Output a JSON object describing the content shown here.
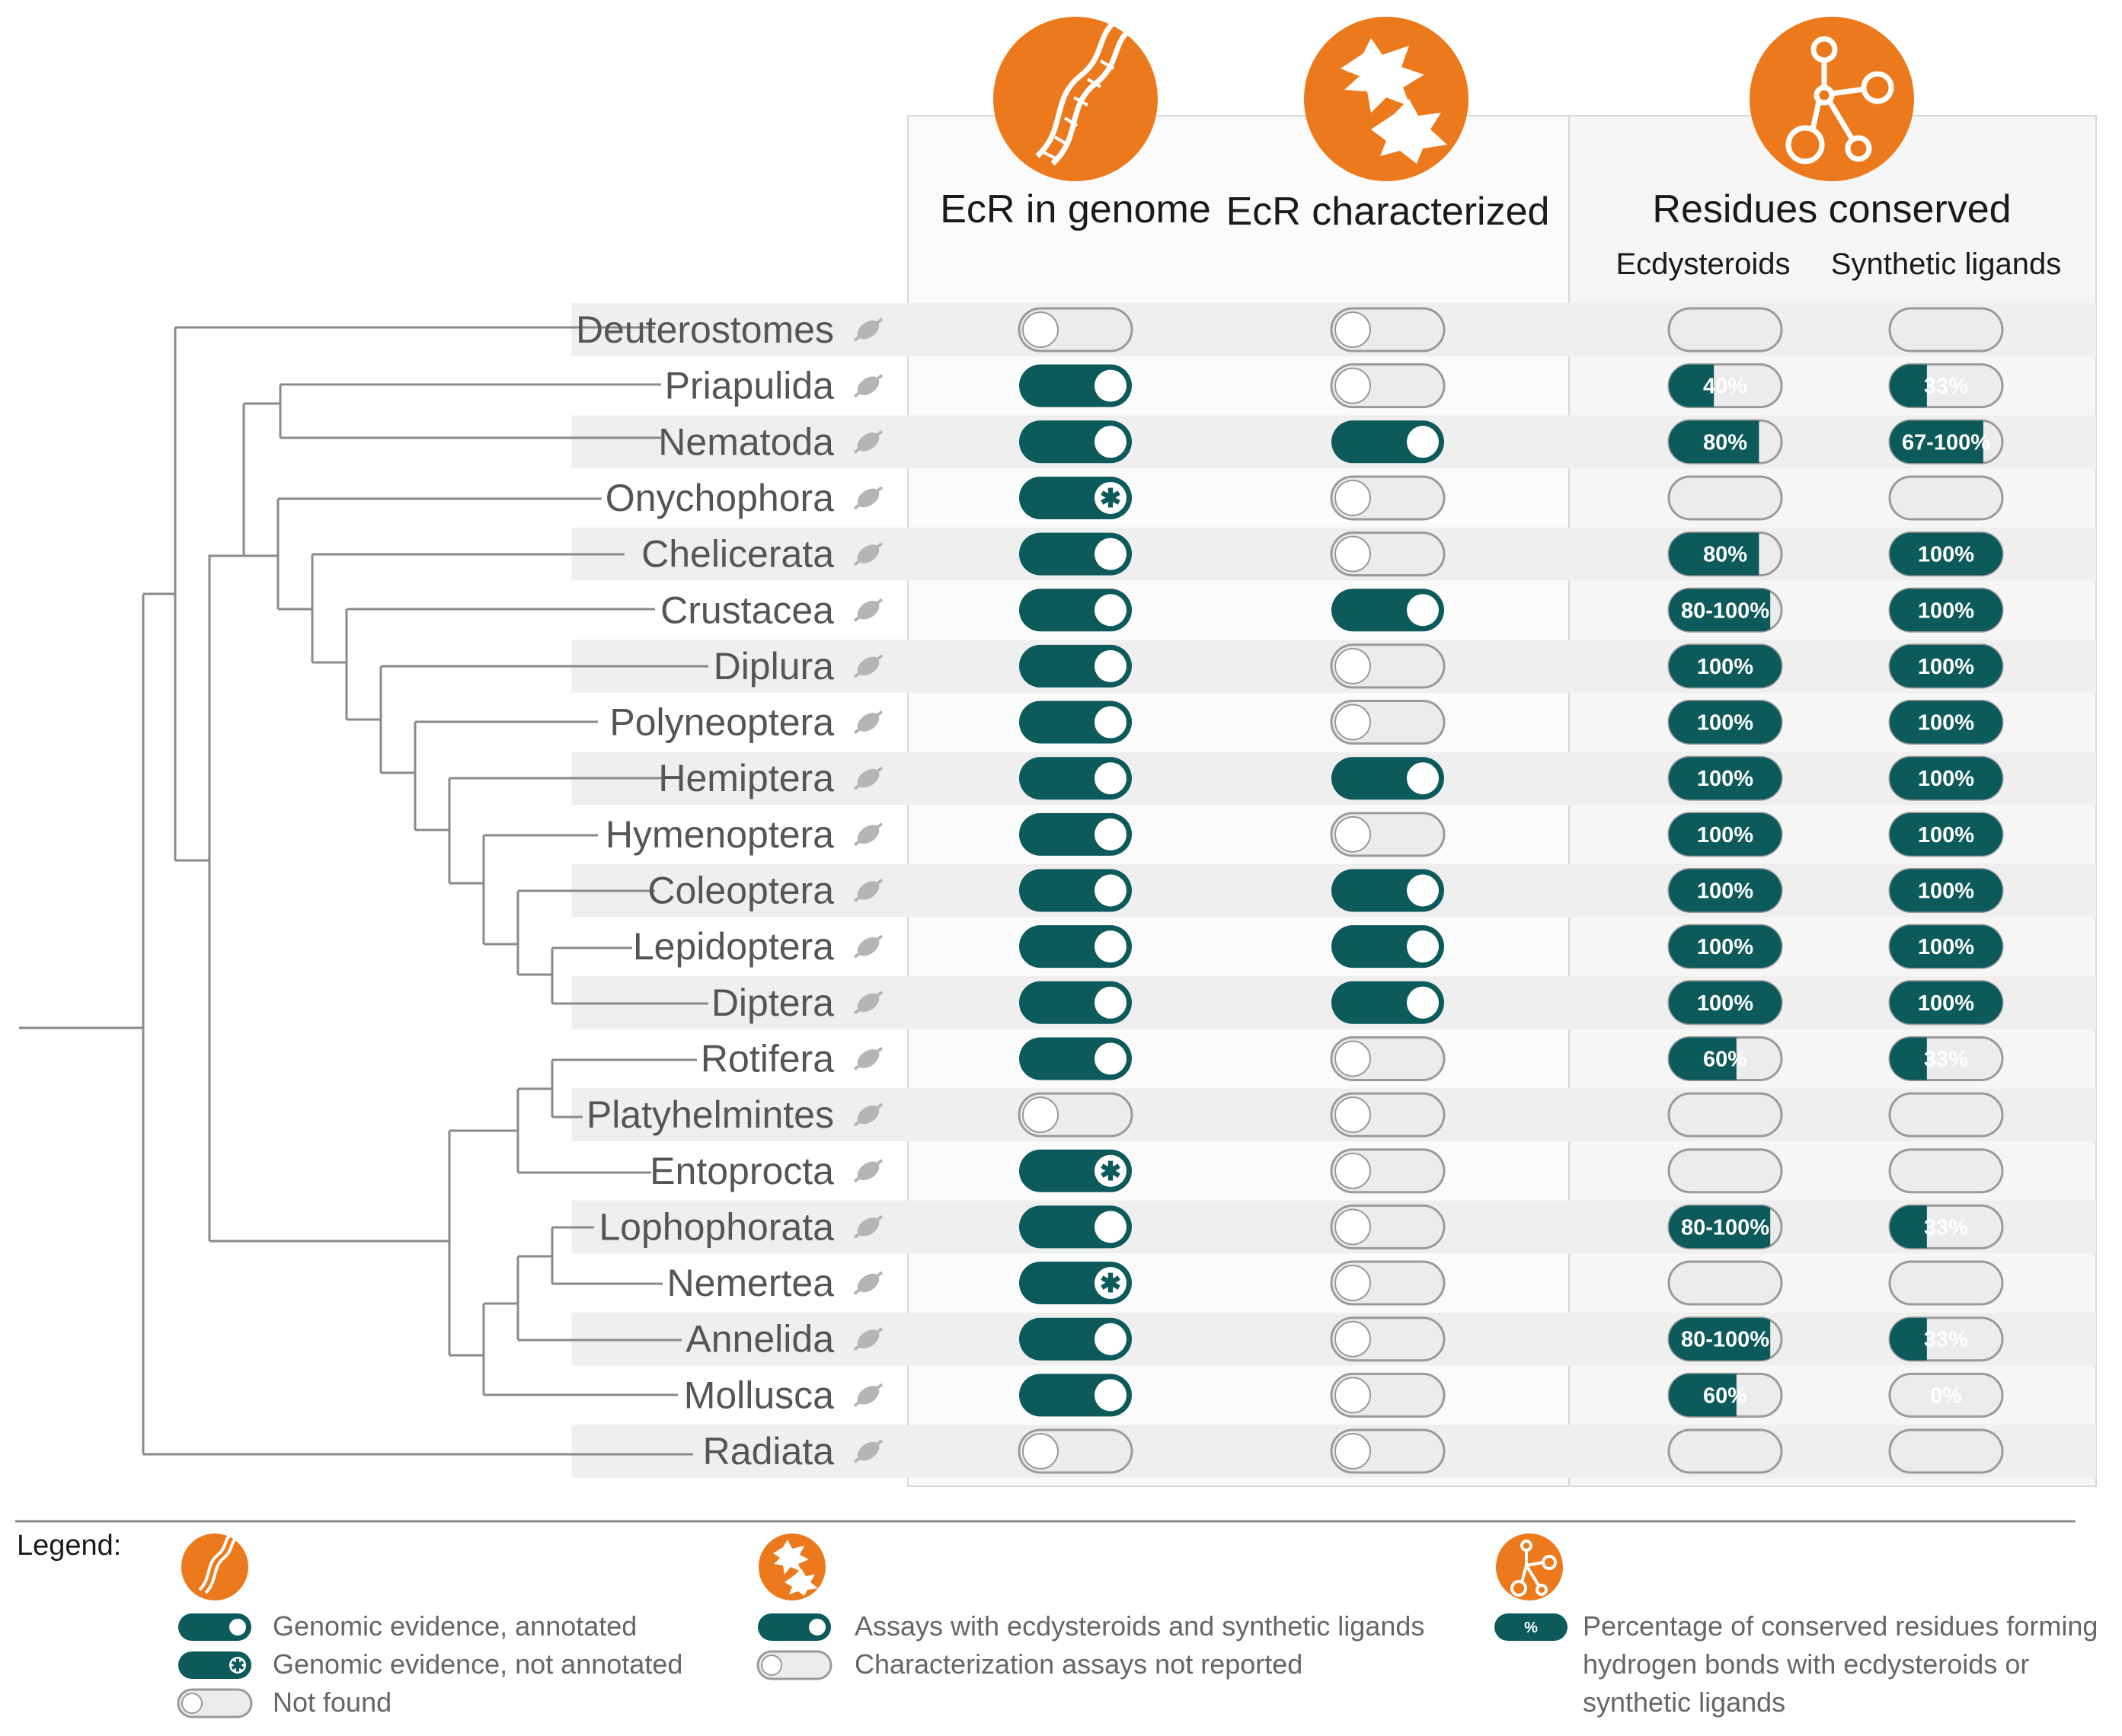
{
  "headers": {
    "ecr_genome": "EcR in genome",
    "ecr_characterized": "EcR characterized",
    "residues": "Residues conserved",
    "ecdysteroids": "Ecdysteroids",
    "synthetic": "Synthetic ligands"
  },
  "rows": [
    {
      "name": "Deuterostomes",
      "icon": "human-icon",
      "genome": "off",
      "characterized": "off",
      "ecd": null,
      "syn": null
    },
    {
      "name": "Priapulida",
      "icon": "priapulid-icon",
      "genome": "on",
      "characterized": "off",
      "ecd": {
        "label": "40%",
        "fill": 0.4
      },
      "syn": {
        "label": "33%",
        "fill": 0.33
      }
    },
    {
      "name": "Nematoda",
      "icon": "nematode-icon",
      "genome": "on",
      "characterized": "on",
      "ecd": {
        "label": "80%",
        "fill": 0.8
      },
      "syn": {
        "label": "67-100%",
        "fill": 0.83
      }
    },
    {
      "name": "Onychophora",
      "icon": "velvet-worm-icon",
      "genome": "star",
      "characterized": "off",
      "ecd": null,
      "syn": null
    },
    {
      "name": "Chelicerata",
      "icon": "spider-icon",
      "genome": "on",
      "characterized": "off",
      "ecd": {
        "label": "80%",
        "fill": 0.8
      },
      "syn": {
        "label": "100%",
        "fill": 1.0
      }
    },
    {
      "name": "Crustacea",
      "icon": "crab-icon",
      "genome": "on",
      "characterized": "on",
      "ecd": {
        "label": "80-100%",
        "fill": 0.9
      },
      "syn": {
        "label": "100%",
        "fill": 1.0
      }
    },
    {
      "name": "Diplura",
      "icon": "diplura-icon",
      "genome": "on",
      "characterized": "off",
      "ecd": {
        "label": "100%",
        "fill": 1.0
      },
      "syn": {
        "label": "100%",
        "fill": 1.0
      }
    },
    {
      "name": "Polyneoptera",
      "icon": "cricket-icon",
      "genome": "on",
      "characterized": "off",
      "ecd": {
        "label": "100%",
        "fill": 1.0
      },
      "syn": {
        "label": "100%",
        "fill": 1.0
      }
    },
    {
      "name": "Hemiptera",
      "icon": "bug-icon",
      "genome": "on",
      "characterized": "on",
      "ecd": {
        "label": "100%",
        "fill": 1.0
      },
      "syn": {
        "label": "100%",
        "fill": 1.0
      }
    },
    {
      "name": "Hymenoptera",
      "icon": "bee-icon",
      "genome": "on",
      "characterized": "off",
      "ecd": {
        "label": "100%",
        "fill": 1.0
      },
      "syn": {
        "label": "100%",
        "fill": 1.0
      }
    },
    {
      "name": "Coleoptera",
      "icon": "beetle-icon",
      "genome": "on",
      "characterized": "on",
      "ecd": {
        "label": "100%",
        "fill": 1.0
      },
      "syn": {
        "label": "100%",
        "fill": 1.0
      }
    },
    {
      "name": "Lepidoptera",
      "icon": "butterfly-icon",
      "genome": "on",
      "characterized": "on",
      "ecd": {
        "label": "100%",
        "fill": 1.0
      },
      "syn": {
        "label": "100%",
        "fill": 1.0
      }
    },
    {
      "name": "Diptera",
      "icon": "fly-icon",
      "genome": "on",
      "characterized": "on",
      "ecd": {
        "label": "100%",
        "fill": 1.0
      },
      "syn": {
        "label": "100%",
        "fill": 1.0
      }
    },
    {
      "name": "Rotifera",
      "icon": "rotifer-icon",
      "genome": "on",
      "characterized": "off",
      "ecd": {
        "label": "60%",
        "fill": 0.6
      },
      "syn": {
        "label": "33%",
        "fill": 0.33
      }
    },
    {
      "name": "Platyhelmintes",
      "icon": "flatworm-icon",
      "genome": "off",
      "characterized": "off",
      "ecd": null,
      "syn": null
    },
    {
      "name": "Entoprocta",
      "icon": "entoproct-icon",
      "genome": "star",
      "characterized": "off",
      "ecd": null,
      "syn": null
    },
    {
      "name": "Lophophorata",
      "icon": "lophophorate-icon",
      "genome": "on",
      "characterized": "off",
      "ecd": {
        "label": "80-100%",
        "fill": 0.9
      },
      "syn": {
        "label": "33%",
        "fill": 0.33
      }
    },
    {
      "name": "Nemertea",
      "icon": "ribbon-worm-icon",
      "genome": "star",
      "characterized": "off",
      "ecd": null,
      "syn": null
    },
    {
      "name": "Annelida",
      "icon": "earthworm-icon",
      "genome": "on",
      "characterized": "off",
      "ecd": {
        "label": "80-100%",
        "fill": 0.9
      },
      "syn": {
        "label": "33%",
        "fill": 0.33
      }
    },
    {
      "name": "Mollusca",
      "icon": "snail-icon",
      "genome": "on",
      "characterized": "off",
      "ecd": {
        "label": "60%",
        "fill": 0.6
      },
      "syn": {
        "label": "0%",
        "fill": 0.0
      }
    },
    {
      "name": "Radiata",
      "icon": "jellyfish-icon",
      "genome": "off",
      "characterized": "off",
      "ecd": null,
      "syn": null
    }
  ],
  "legend": {
    "title": "Legend:",
    "genome_annotated": "Genomic evidence, annotated",
    "genome_not_annotated": "Genomic evidence, not annotated",
    "not_found": "Not found",
    "assays": "Assays with ecdysteroids and synthetic ligands",
    "not_reported": "Characterization assays not reported",
    "pct_symbol": "%",
    "pct_line1": "Percentage of conserved residues forming",
    "pct_line2": "hydrogen bonds with ecdysteroids or",
    "pct_line3": "synthetic ligands"
  },
  "colors": {
    "orange": "#ec7a1c",
    "teal": "#0d5a5a",
    "track": "#ececec",
    "stripe": "#efefef"
  }
}
